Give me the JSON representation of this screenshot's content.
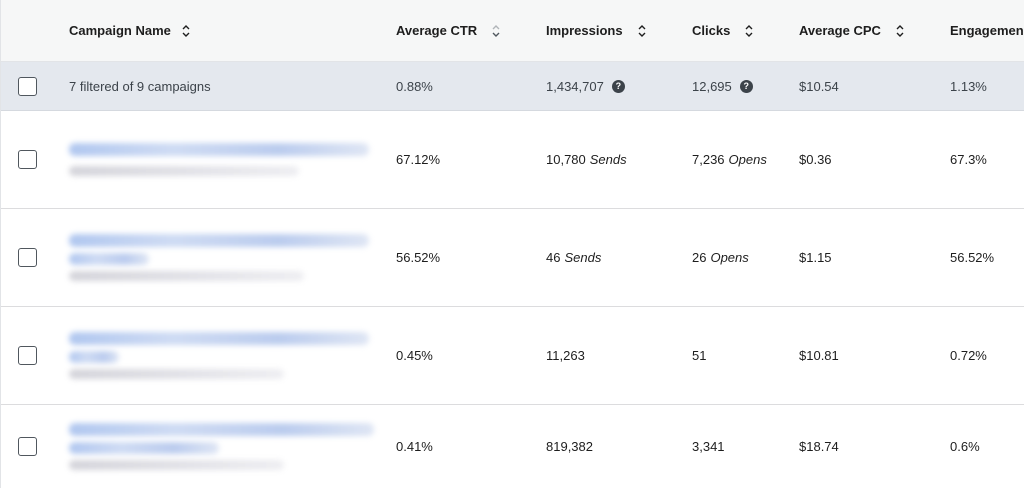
{
  "header": {
    "campaign_name": "Campaign Name",
    "average_ctr": "Average CTR",
    "impressions": "Impressions",
    "clicks": "Clicks",
    "average_cpc": "Average CPC",
    "engagement": "Engagemen"
  },
  "summary": {
    "label": "7 filtered of 9 campaigns",
    "average_ctr": "0.88%",
    "impressions": "1,434,707",
    "clicks": "12,695",
    "average_cpc": "$10.54",
    "engagement": "1.13%",
    "help_glyph": "?"
  },
  "rows": [
    {
      "ctr": "67.12%",
      "impressions": "10,780",
      "impressions_unit": "Sends",
      "clicks": "7,236",
      "clicks_unit": "Opens",
      "cpc": "$0.36",
      "engagement": "67.3%"
    },
    {
      "ctr": "56.52%",
      "impressions": "46",
      "impressions_unit": "Sends",
      "clicks": "26",
      "clicks_unit": "Opens",
      "cpc": "$1.15",
      "engagement": "56.52%"
    },
    {
      "ctr": "0.45%",
      "impressions": "11,263",
      "impressions_unit": "",
      "clicks": "51",
      "clicks_unit": "",
      "cpc": "$10.81",
      "engagement": "0.72%"
    },
    {
      "ctr": "0.41%",
      "impressions": "819,382",
      "impressions_unit": "",
      "clicks": "3,341",
      "clicks_unit": "",
      "cpc": "$18.74",
      "engagement": "0.6%"
    }
  ],
  "colors": {
    "summary_bg": "#e4e8ee",
    "header_bg": "#f6f7f7",
    "blur_link": "#a8c1ee"
  },
  "icons": {
    "sort": "sort-updown-icon",
    "help": "help-circle-icon"
  }
}
